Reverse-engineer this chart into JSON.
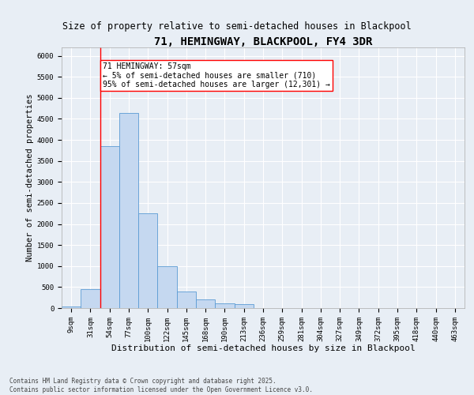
{
  "title": "71, HEMINGWAY, BLACKPOOL, FY4 3DR",
  "subtitle": "Size of property relative to semi-detached houses in Blackpool",
  "xlabel": "Distribution of semi-detached houses by size in Blackpool",
  "ylabel": "Number of semi-detached properties",
  "categories": [
    "9sqm",
    "31sqm",
    "54sqm",
    "77sqm",
    "100sqm",
    "122sqm",
    "145sqm",
    "168sqm",
    "190sqm",
    "213sqm",
    "236sqm",
    "259sqm",
    "281sqm",
    "304sqm",
    "327sqm",
    "349sqm",
    "372sqm",
    "395sqm",
    "418sqm",
    "440sqm",
    "463sqm"
  ],
  "values": [
    30,
    450,
    3850,
    4650,
    2250,
    1000,
    400,
    200,
    120,
    100,
    0,
    0,
    0,
    0,
    0,
    0,
    0,
    0,
    0,
    0,
    0
  ],
  "bar_color": "#c5d8f0",
  "bar_edge_color": "#5a9bd4",
  "background_color": "#e8eef5",
  "grid_color": "#ffffff",
  "vline_x_idx": 1,
  "vline_color": "red",
  "annotation_text": "71 HEMINGWAY: 57sqm\n← 5% of semi-detached houses are smaller (710)\n95% of semi-detached houses are larger (12,301) →",
  "annotation_box_color": "white",
  "annotation_box_edge": "red",
  "ylim": [
    0,
    6200
  ],
  "yticks": [
    0,
    500,
    1000,
    1500,
    2000,
    2500,
    3000,
    3500,
    4000,
    4500,
    5000,
    5500,
    6000
  ],
  "footnote": "Contains HM Land Registry data © Crown copyright and database right 2025.\nContains public sector information licensed under the Open Government Licence v3.0.",
  "title_fontsize": 10,
  "subtitle_fontsize": 8.5,
  "xlabel_fontsize": 8,
  "ylabel_fontsize": 7.5,
  "tick_fontsize": 6.5,
  "footnote_fontsize": 5.5,
  "annotation_fontsize": 7
}
